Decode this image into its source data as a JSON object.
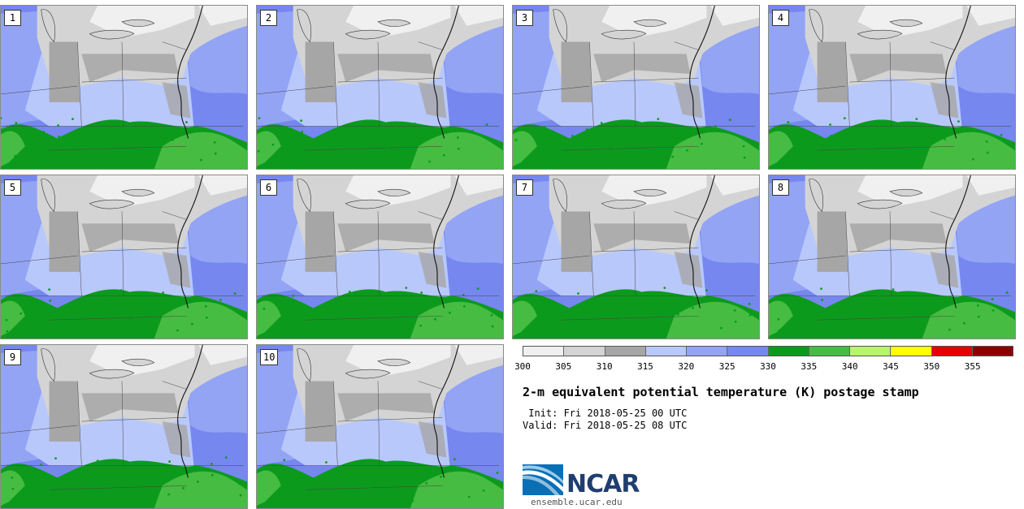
{
  "panels": [
    {
      "label": "1"
    },
    {
      "label": "2"
    },
    {
      "label": "3"
    },
    {
      "label": "4"
    },
    {
      "label": "5"
    },
    {
      "label": "6"
    },
    {
      "label": "7"
    },
    {
      "label": "8"
    },
    {
      "label": "9"
    },
    {
      "label": "10"
    }
  ],
  "legend": {
    "colors": [
      "#f0f0f0",
      "#d4d4d4",
      "#a6a6a6",
      "#b8c8fb",
      "#93a4f5",
      "#7687ef",
      "#0c9a1c",
      "#46bc42",
      "#b6f56c",
      "#ffff00",
      "#e60000",
      "#8b0000"
    ],
    "ticks": [
      "300",
      "305",
      "310",
      "315",
      "320",
      "325",
      "330",
      "335",
      "340",
      "345",
      "350",
      "355"
    ]
  },
  "title": "2-m equivalent potential temperature (K) postage stamp",
  "init": " Init: Fri 2018-05-25 00 UTC",
  "valid": "Valid: Fri 2018-05-25 08 UTC",
  "logo_text": "NCAR",
  "url": "ensemble.ucar.edu"
}
